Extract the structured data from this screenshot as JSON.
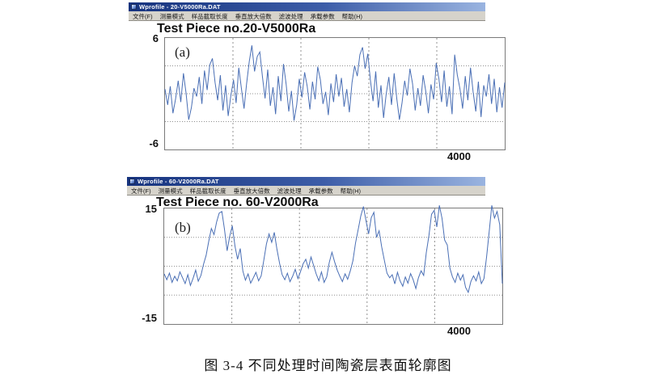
{
  "colors": {
    "titlebar_start": "#16337e",
    "titlebar_end": "#9ab4e0",
    "menu_bg": "#d6d3cb",
    "trace": "#4a6fb5",
    "grid": "#909090"
  },
  "windows": [
    {
      "title": "Wprofile - 20-V5000Ra.DAT",
      "menu": [
        "文件(F)",
        "测量模式",
        "样品截取长度",
        "垂直放大倍数",
        "滤波处理",
        "承载参数",
        "帮助(H)"
      ],
      "chart_title": "Test Piece no.20-V5000Ra",
      "panel_label": "(a)",
      "y_max": "6",
      "y_min": "-6",
      "x_max": "4000"
    },
    {
      "title": "Wprofile - 60-V2000Ra.DAT",
      "menu": [
        "文件(F)",
        "测量模式",
        "样品截取长度",
        "垂直放大倍数",
        "滤波处理",
        "承载参数",
        "帮助(H)"
      ],
      "chart_title": "Test Piece no. 60-V2000Ra",
      "panel_label": "(b)",
      "y_max": "15",
      "y_min": "-15",
      "x_max": "4000"
    }
  ],
  "caption": "图  3-4  不同处理时间陶瓷层表面轮廓图",
  "chart_data": [
    {
      "type": "line",
      "title": "Test Piece no.20-V5000Ra",
      "xlabel": "",
      "ylabel": "",
      "xlim": [
        0,
        4000
      ],
      "ylim": [
        -6,
        6
      ],
      "x_gridlines": [
        800,
        1600,
        2400,
        3200
      ],
      "y_gridlines": [
        -3,
        0,
        3
      ],
      "x_tick_labels": [
        "4000"
      ],
      "y_tick_labels": [
        "6",
        "-6"
      ],
      "values": [
        0.5,
        -1.2,
        0.8,
        -2.1,
        -0.6,
        1.4,
        -0.9,
        2.2,
        0.1,
        -2.8,
        -1.5,
        0.6,
        -0.3,
        1.8,
        -1.1,
        2.5,
        0.4,
        3.1,
        3.8,
        1.2,
        -0.7,
        2.0,
        -1.8,
        0.9,
        -2.4,
        -0.2,
        1.5,
        -1.0,
        2.8,
        0.6,
        -1.6,
        1.1,
        3.5,
        5.2,
        2.4,
        4.0,
        4.5,
        1.8,
        -0.5,
        2.6,
        -1.3,
        0.7,
        -2.2,
        1.9,
        -0.8,
        3.2,
        1.0,
        -1.9,
        0.3,
        -2.9,
        -1.2,
        1.6,
        -0.4,
        2.3,
        0.8,
        -1.7,
        1.3,
        -0.6,
        2.9,
        1.5,
        -1.1,
        0.2,
        -2.3,
        1.1,
        -0.9,
        2.1,
        -0.3,
        1.7,
        -1.4,
        0.5,
        -2.0,
        1.2,
        3.0,
        1.9,
        4.2,
        5.0,
        2.7,
        4.3,
        1.4,
        -0.8,
        2.4,
        -1.5,
        0.9,
        -2.6,
        0.0,
        1.8,
        -1.2,
        2.2,
        -0.5,
        -2.8,
        -1.0,
        1.4,
        -0.2,
        2.7,
        1.1,
        -1.8,
        0.6,
        -1.3,
        2.0,
        0.3,
        -2.1,
        1.0,
        -0.6,
        3.3,
        1.6,
        -0.9,
        2.5,
        -1.4,
        0.8,
        -2.2,
        4.2,
        2.0,
        0.5,
        -1.6,
        1.9,
        -0.7,
        2.8,
        0.2,
        -1.9,
        1.3,
        -2.5,
        0.9,
        -0.3,
        2.1,
        -1.1,
        1.6,
        -2.0,
        0.7,
        -1.5,
        1.2
      ]
    },
    {
      "type": "line",
      "title": "Test Piece no. 60-V2000Ra",
      "xlabel": "",
      "ylabel": "",
      "xlim": [
        0,
        4000
      ],
      "ylim": [
        -15,
        15
      ],
      "x_gridlines": [
        800,
        1600,
        2400,
        3200
      ],
      "y_gridlines": [
        -7.5,
        0,
        7.5
      ],
      "x_tick_labels": [
        "4000"
      ],
      "y_tick_labels": [
        "15",
        "-15"
      ],
      "values": [
        -2.0,
        -3.5,
        -1.8,
        -4.2,
        -2.6,
        -3.8,
        -1.5,
        -3.0,
        -4.5,
        -2.2,
        -5.0,
        -3.2,
        -1.0,
        -3.9,
        -2.4,
        0.5,
        2.8,
        6.5,
        9.8,
        8.2,
        11.5,
        13.8,
        14.2,
        9.6,
        4.0,
        7.8,
        10.5,
        5.2,
        1.8,
        4.6,
        -1.2,
        -3.6,
        -2.0,
        -4.4,
        -3.0,
        -1.6,
        -3.8,
        -2.5,
        1.5,
        5.8,
        8.4,
        6.2,
        8.8,
        4.5,
        0.8,
        -2.2,
        -3.5,
        -1.8,
        -4.0,
        -2.6,
        -0.8,
        -3.2,
        -1.4,
        0.6,
        1.8,
        -0.5,
        2.4,
        0.2,
        -2.0,
        -3.8,
        -1.5,
        -4.2,
        -2.8,
        1.0,
        3.6,
        1.2,
        -1.0,
        -2.6,
        -4.0,
        -2.0,
        -3.4,
        -1.2,
        1.4,
        6.0,
        9.5,
        13.0,
        15.5,
        11.8,
        8.4,
        12.6,
        14.0,
        7.5,
        9.2,
        5.0,
        1.5,
        -1.8,
        -3.0,
        -2.2,
        -4.6,
        -1.6,
        -3.8,
        -5.2,
        -2.8,
        -4.4,
        -1.9,
        -3.5,
        -5.8,
        -3.0,
        -1.2,
        -2.4,
        3.5,
        8.0,
        13.5,
        14.5,
        10.2,
        15.8,
        12.4,
        6.8,
        5.5,
        -0.5,
        -2.8,
        -4.2,
        -1.8,
        -3.6,
        -2.2,
        -5.5,
        -6.8,
        -4.0,
        -2.5,
        -3.8,
        -1.5,
        -4.5,
        -3.2,
        2.5,
        9.0,
        15.8,
        12.5,
        14.2,
        10.8,
        -4.5
      ]
    }
  ]
}
